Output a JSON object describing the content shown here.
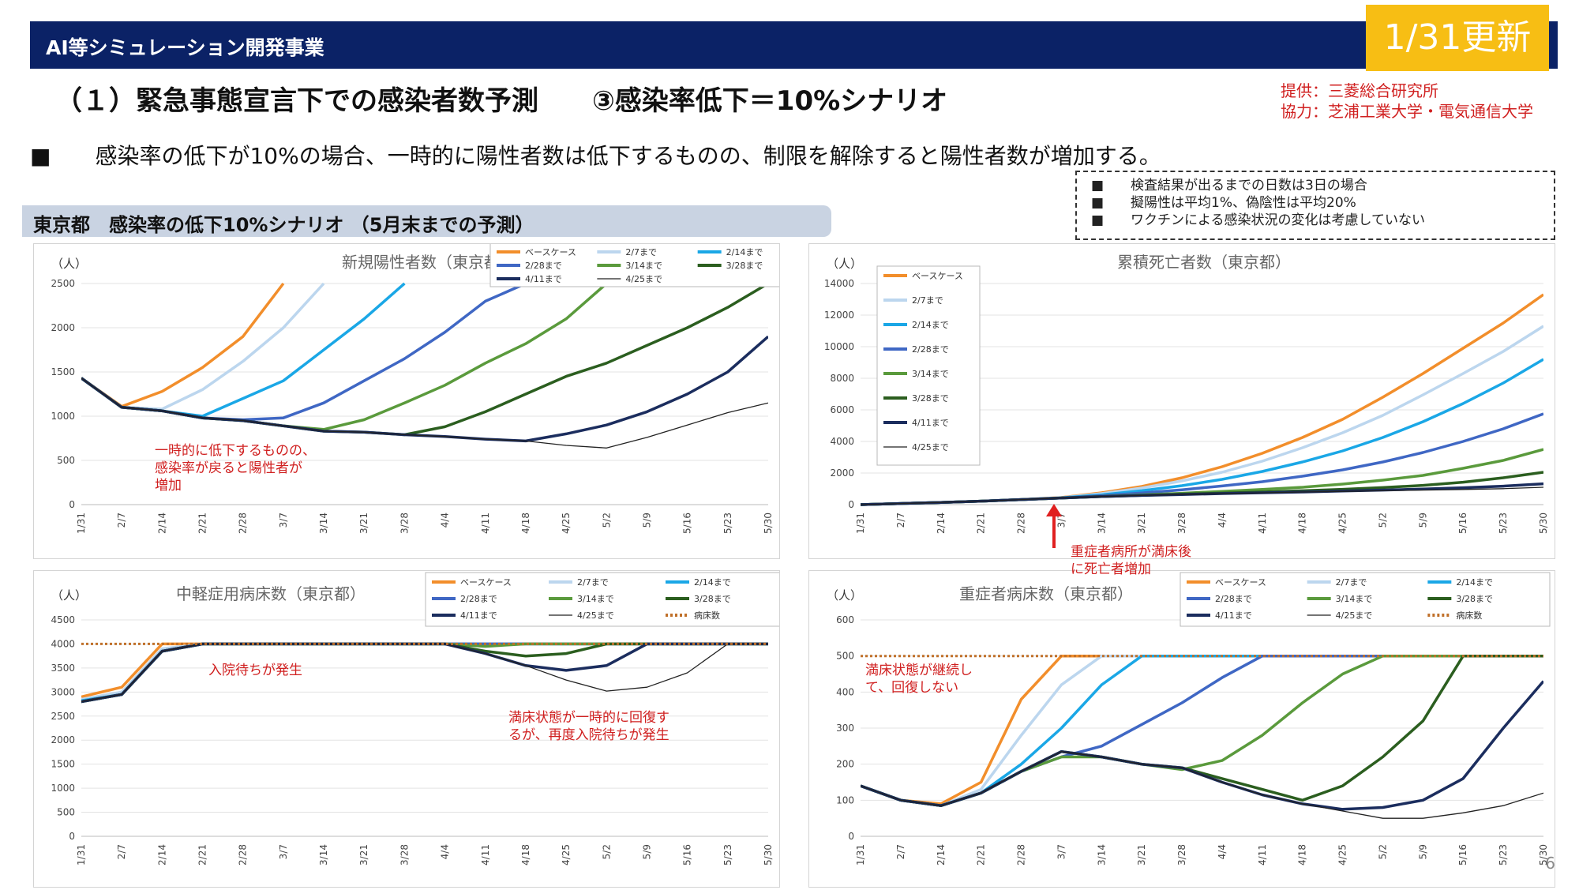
{
  "header": {
    "title": "AI等シミュレーション開発事業",
    "update_badge": "1/31更新"
  },
  "slide": {
    "title": "（１）緊急事態宣言下での感染者数予測　　③感染率低下＝10%シナリオ",
    "credit_provider": "提供：三菱総合研究所",
    "credit_cooperation": "協力：芝浦工業大学・電気通信大学",
    "bullet": "■　　感染率の低下が10%の場合、一時的に陽性者数は低下するものの、制限を解除すると陽性者数が増加する。",
    "notes": [
      "■　　検査結果が出るまでの日数は3日の場合",
      "■　　擬陽性は平均1%、偽陰性は平均20%",
      "■　　ワクチンによる感染状況の変化は考慮していない"
    ],
    "section_title": "東京都　感染率の低下10%シナリオ （5月末までの予測）",
    "page_number": "6"
  },
  "colors": {
    "ベースケース": "#f28e2b",
    "2/7まで": "#bcd6ee",
    "2/14まで": "#1aa7e6",
    "2/28まで": "#3f67c4",
    "3/14まで": "#5a9a3c",
    "3/28まで": "#2b5e1f",
    "4/11まで": "#1b2d5e",
    "4/25まで": "#222222",
    "病床数": "#c0702a"
  },
  "x_ticks": [
    "1/31",
    "2/7",
    "2/14",
    "2/21",
    "2/28",
    "3/7",
    "3/14",
    "3/21",
    "3/28",
    "4/4",
    "4/11",
    "4/18",
    "4/25",
    "5/2",
    "5/9",
    "5/16",
    "5/23",
    "5/30"
  ],
  "annotations": {
    "new_cases": "一時的に低下するものの、\n感染率が戻ると陽性者が\n増加",
    "deaths_arrow": "重症者病所が満床後\nに死亡者増加",
    "beds": "入院待ちが発生",
    "beds2": "満床状態が一時的に回復す\nるが、再度入院待ちが発生",
    "severe": "満床状態が継続し\nて、回復しない"
  },
  "chart_data": [
    {
      "id": "new_cases",
      "type": "line",
      "title": "新規陽性者数（東京都）",
      "ylabel": "（人）",
      "ylim": [
        0,
        2500
      ],
      "yticks": [
        0,
        500,
        1000,
        1500,
        2000,
        2500
      ],
      "x": [
        "1/31",
        "2/7",
        "2/14",
        "2/21",
        "2/28",
        "3/7",
        "3/14",
        "3/21",
        "3/28",
        "4/4",
        "4/11",
        "4/18",
        "4/25",
        "5/2",
        "5/9",
        "5/16",
        "5/23",
        "5/30"
      ],
      "series": [
        {
          "name": "ベースケース",
          "values": [
            1430,
            1110,
            1280,
            1550,
            1900,
            2500,
            null,
            null,
            null,
            null,
            null,
            null,
            null,
            null,
            null,
            null,
            null,
            null
          ]
        },
        {
          "name": "2/7まで",
          "values": [
            1430,
            1100,
            1080,
            1300,
            1620,
            2000,
            2500,
            null,
            null,
            null,
            null,
            null,
            null,
            null,
            null,
            null,
            null,
            null
          ]
        },
        {
          "name": "2/14まで",
          "values": [
            1430,
            1100,
            1060,
            1000,
            1200,
            1400,
            1750,
            2100,
            2500,
            null,
            null,
            null,
            null,
            null,
            null,
            null,
            null,
            null
          ]
        },
        {
          "name": "2/28まで",
          "values": [
            1430,
            1100,
            1060,
            980,
            960,
            980,
            1150,
            1400,
            1650,
            1950,
            2300,
            2500,
            null,
            null,
            null,
            null,
            null,
            null
          ]
        },
        {
          "name": "3/14まで",
          "values": [
            1430,
            1100,
            1060,
            980,
            950,
            890,
            850,
            960,
            1150,
            1350,
            1600,
            1820,
            2100,
            2500,
            null,
            null,
            null,
            null
          ]
        },
        {
          "name": "3/28まで",
          "values": [
            1430,
            1100,
            1060,
            980,
            950,
            890,
            830,
            820,
            790,
            880,
            1050,
            1250,
            1450,
            1600,
            1800,
            2000,
            2230,
            2500
          ]
        },
        {
          "name": "4/11まで",
          "values": [
            1430,
            1100,
            1060,
            980,
            950,
            890,
            830,
            820,
            790,
            770,
            740,
            720,
            800,
            900,
            1050,
            1250,
            1500,
            1900
          ]
        },
        {
          "name": "4/25まで",
          "values": [
            1430,
            1100,
            1060,
            980,
            950,
            890,
            830,
            820,
            790,
            770,
            740,
            720,
            670,
            640,
            760,
            900,
            1040,
            1150
          ]
        }
      ]
    },
    {
      "id": "deaths",
      "type": "line",
      "title": "累積死亡者数（東京都）",
      "ylabel": "（人）",
      "ylim": [
        0,
        14000
      ],
      "yticks": [
        0,
        2000,
        4000,
        6000,
        8000,
        10000,
        12000,
        14000
      ],
      "x": [
        "1/31",
        "2/7",
        "2/14",
        "2/21",
        "2/28",
        "3/7",
        "3/14",
        "3/21",
        "3/28",
        "4/4",
        "4/11",
        "4/18",
        "4/25",
        "5/2",
        "5/9",
        "5/16",
        "5/23",
        "5/30"
      ],
      "series": [
        {
          "name": "ベースケース",
          "values": [
            0,
            70,
            140,
            220,
            320,
            450,
            750,
            1150,
            1700,
            2400,
            3250,
            4250,
            5400,
            6800,
            8300,
            9900,
            11500,
            13300
          ]
        },
        {
          "name": "2/7まで",
          "values": [
            0,
            70,
            140,
            220,
            320,
            440,
            700,
            1050,
            1500,
            2050,
            2750,
            3600,
            4550,
            5650,
            6950,
            8300,
            9700,
            11300
          ]
        },
        {
          "name": "2/14まで",
          "values": [
            0,
            70,
            140,
            220,
            320,
            430,
            620,
            880,
            1200,
            1600,
            2100,
            2700,
            3400,
            4250,
            5250,
            6400,
            7700,
            9200
          ]
        },
        {
          "name": "2/28まで",
          "values": [
            0,
            70,
            140,
            220,
            320,
            420,
            560,
            740,
            940,
            1180,
            1450,
            1800,
            2200,
            2700,
            3300,
            4000,
            4800,
            5750
          ]
        },
        {
          "name": "3/14まで",
          "values": [
            0,
            70,
            140,
            220,
            320,
            420,
            520,
            620,
            720,
            840,
            960,
            1100,
            1300,
            1550,
            1850,
            2300,
            2800,
            3500
          ]
        },
        {
          "name": "3/28まで",
          "values": [
            0,
            70,
            140,
            220,
            320,
            420,
            510,
            590,
            660,
            730,
            800,
            880,
            970,
            1080,
            1220,
            1420,
            1700,
            2050
          ]
        },
        {
          "name": "4/11まで",
          "values": [
            0,
            70,
            140,
            220,
            320,
            420,
            510,
            580,
            640,
            700,
            750,
            800,
            860,
            920,
            990,
            1070,
            1170,
            1320
          ]
        },
        {
          "name": "4/25まで",
          "values": [
            0,
            70,
            140,
            220,
            320,
            420,
            510,
            580,
            640,
            700,
            750,
            800,
            840,
            880,
            920,
            960,
            1010,
            1100
          ]
        }
      ]
    },
    {
      "id": "moderate_beds",
      "type": "line",
      "title": "中軽症用病床数（東京都）",
      "ylabel": "（人）",
      "ylim": [
        0,
        4500
      ],
      "yticks": [
        0,
        500,
        1000,
        1500,
        2000,
        2500,
        3000,
        3500,
        4000,
        4500
      ],
      "x": [
        "1/31",
        "2/7",
        "2/14",
        "2/21",
        "2/28",
        "3/7",
        "3/14",
        "3/21",
        "3/28",
        "4/4",
        "4/11",
        "4/18",
        "4/25",
        "5/2",
        "5/9",
        "5/16",
        "5/23",
        "5/30"
      ],
      "series": [
        {
          "name": "ベースケース",
          "values": [
            2900,
            3100,
            4000,
            4000,
            4000,
            4000,
            4000,
            4000,
            4000,
            4000,
            4000,
            4000,
            4000,
            4000,
            4000,
            4000,
            4000,
            4000
          ]
        },
        {
          "name": "2/7まで",
          "values": [
            2850,
            3000,
            3900,
            4000,
            4000,
            4000,
            4000,
            4000,
            4000,
            4000,
            4000,
            4000,
            4000,
            4000,
            4000,
            4000,
            4000,
            4000
          ]
        },
        {
          "name": "2/14まで",
          "values": [
            2820,
            2950,
            3850,
            4000,
            4000,
            4000,
            4000,
            4000,
            4000,
            4000,
            4000,
            4000,
            4000,
            4000,
            4000,
            4000,
            4000,
            4000
          ]
        },
        {
          "name": "2/28まで",
          "values": [
            2800,
            2950,
            3850,
            4000,
            4000,
            4000,
            4000,
            4000,
            4000,
            4000,
            4000,
            4000,
            4000,
            4000,
            4000,
            4000,
            4000,
            4000
          ]
        },
        {
          "name": "3/14まで",
          "values": [
            2800,
            2950,
            3850,
            4000,
            4000,
            4000,
            4000,
            4000,
            4000,
            4000,
            3950,
            4000,
            4000,
            4000,
            4000,
            4000,
            4000,
            4000
          ]
        },
        {
          "name": "3/28まで",
          "values": [
            2800,
            2950,
            3850,
            4000,
            4000,
            4000,
            4000,
            4000,
            4000,
            4000,
            3850,
            3750,
            3800,
            4000,
            4000,
            4000,
            4000,
            4000
          ]
        },
        {
          "name": "4/11まで",
          "values": [
            2800,
            2950,
            3850,
            4000,
            4000,
            4000,
            4000,
            4000,
            4000,
            4000,
            3800,
            3550,
            3450,
            3550,
            4000,
            4000,
            4000,
            4000
          ]
        },
        {
          "name": "4/25まで",
          "values": [
            2800,
            2950,
            3850,
            4000,
            4000,
            4000,
            4000,
            4000,
            4000,
            4000,
            3800,
            3550,
            3250,
            3020,
            3100,
            3400,
            4000,
            4000
          ]
        },
        {
          "name": "病床数",
          "values": [
            4000,
            4000,
            4000,
            4000,
            4000,
            4000,
            4000,
            4000,
            4000,
            4000,
            4000,
            4000,
            4000,
            4000,
            4000,
            4000,
            4000,
            4000
          ]
        }
      ]
    },
    {
      "id": "severe_beds",
      "type": "line",
      "title": "重症者病床数（東京都）",
      "ylabel": "（人）",
      "ylim": [
        0,
        600
      ],
      "yticks": [
        0,
        100,
        200,
        300,
        400,
        500,
        600
      ],
      "x": [
        "1/31",
        "2/7",
        "2/14",
        "2/21",
        "2/28",
        "3/7",
        "3/14",
        "3/21",
        "3/28",
        "4/4",
        "4/11",
        "4/18",
        "4/25",
        "5/2",
        "5/9",
        "5/16",
        "5/23",
        "5/30"
      ],
      "series": [
        {
          "name": "ベースケース",
          "values": [
            140,
            100,
            90,
            150,
            380,
            500,
            500,
            500,
            500,
            500,
            500,
            500,
            500,
            500,
            500,
            500,
            500,
            500
          ]
        },
        {
          "name": "2/7まで",
          "values": [
            140,
            100,
            85,
            130,
            280,
            420,
            500,
            500,
            500,
            500,
            500,
            500,
            500,
            500,
            500,
            500,
            500,
            500
          ]
        },
        {
          "name": "2/14まで",
          "values": [
            140,
            100,
            85,
            120,
            200,
            300,
            420,
            500,
            500,
            500,
            500,
            500,
            500,
            500,
            500,
            500,
            500,
            500
          ]
        },
        {
          "name": "2/28まで",
          "values": [
            140,
            100,
            85,
            120,
            180,
            220,
            250,
            310,
            370,
            440,
            500,
            500,
            500,
            500,
            500,
            500,
            500,
            500
          ]
        },
        {
          "name": "3/14まで",
          "values": [
            140,
            100,
            85,
            120,
            180,
            220,
            220,
            200,
            185,
            210,
            280,
            370,
            450,
            500,
            500,
            500,
            500,
            500
          ]
        },
        {
          "name": "3/28まで",
          "values": [
            140,
            100,
            85,
            120,
            180,
            235,
            220,
            200,
            190,
            160,
            130,
            100,
            140,
            220,
            320,
            500,
            500,
            500
          ]
        },
        {
          "name": "4/11まで",
          "values": [
            140,
            100,
            85,
            120,
            180,
            235,
            220,
            200,
            190,
            150,
            115,
            90,
            75,
            80,
            100,
            160,
            300,
            430
          ]
        },
        {
          "name": "4/25まで",
          "values": [
            140,
            100,
            85,
            120,
            180,
            235,
            220,
            200,
            190,
            150,
            115,
            90,
            70,
            50,
            50,
            65,
            85,
            120
          ]
        },
        {
          "name": "病床数",
          "values": [
            500,
            500,
            500,
            500,
            500,
            500,
            500,
            500,
            500,
            500,
            500,
            500,
            500,
            500,
            500,
            500,
            500,
            500
          ]
        }
      ]
    }
  ]
}
